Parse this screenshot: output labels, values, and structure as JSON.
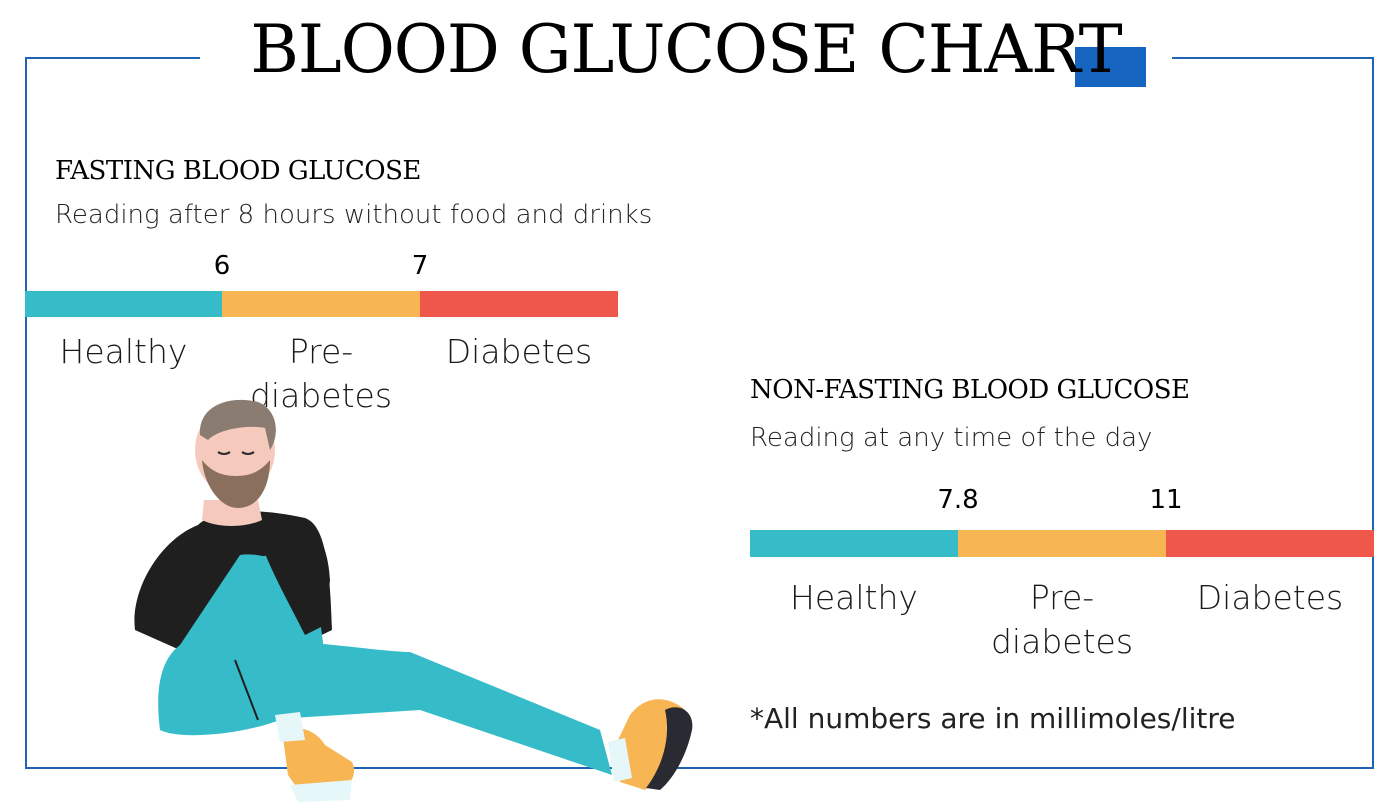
{
  "title": "BLOOD GLUCOSE CHART",
  "colors": {
    "frame": "#1f63b3",
    "accent": "#1565c0",
    "healthy": "#35bcc8",
    "prediabetes": "#f8b553",
    "diabetes": "#ef574b"
  },
  "fasting": {
    "heading": "FASTING BLOOD GLUCOSE",
    "subtitle": "Reading after 8 hours without food and drinks",
    "thresholds": [
      "6",
      "7"
    ],
    "labels": {
      "healthy": "Healthy",
      "prediabetes_line1": "Pre-",
      "prediabetes_line2": "diabetes",
      "diabetes": "Diabetes"
    }
  },
  "non_fasting": {
    "heading": "NON-FASTING BLOOD GLUCOSE",
    "subtitle": "Reading at any time of the day",
    "thresholds": [
      "7.8",
      "11"
    ],
    "labels": {
      "healthy": "Healthy",
      "prediabetes_line1": "Pre-",
      "prediabetes_line2": "diabetes",
      "diabetes": "Diabetes"
    }
  },
  "footnote": "*All numbers are in millimoles/litre",
  "illustration": "man-sitting-illustration"
}
